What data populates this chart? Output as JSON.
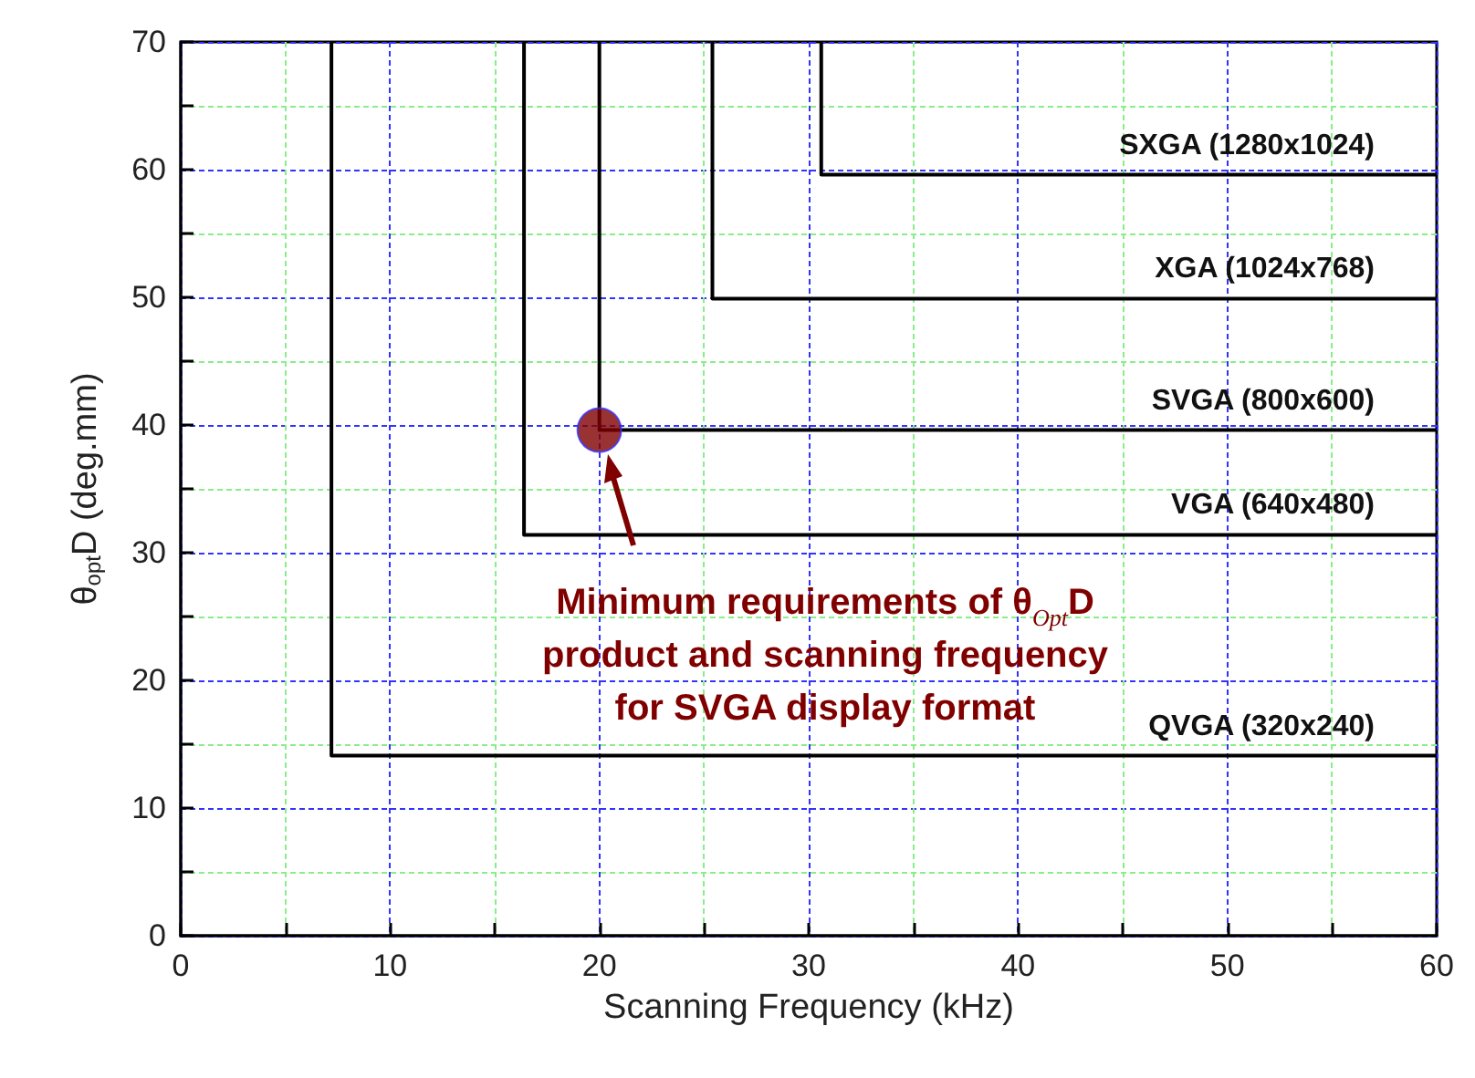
{
  "chart_data": {
    "type": "line",
    "xlabel": "Scanning Frequency (kHz)",
    "ylabel": "θ$_{opt}$D (deg.mm)",
    "xlim": [
      0,
      60
    ],
    "xticks": [
      0,
      {
        "value": 5,
        "label": null
      },
      10,
      {
        "value": 15,
        "label": null
      },
      20,
      {
        "value": 25,
        "label": null
      },
      30,
      {
        "value": 35,
        "label": null
      },
      40,
      {
        "value": 45,
        "label": null
      },
      50,
      {
        "value": 55,
        "label": null
      },
      60
    ],
    "ylim": [
      0,
      70
    ],
    "yticks": [
      0,
      {
        "value": 5,
        "label": null
      },
      10,
      {
        "value": 15,
        "label": null
      },
      20,
      {
        "value": 25,
        "label": null
      },
      30,
      {
        "value": 35,
        "label": null
      },
      40,
      {
        "value": 45,
        "label": null
      },
      50,
      {
        "value": 55,
        "label": null
      },
      60,
      {
        "value": 65,
        "label": null
      },
      70
    ],
    "grid": true,
    "marker": "none",
    "series": [
      {
        "name": "QVGA (320x240)",
        "color": "#000000",
        "x": [
          7.2,
          7.2,
          60
        ],
        "values": [
          70,
          14.1,
          14.1
        ]
      },
      {
        "name": "VGA (640x480)",
        "color": "#000000",
        "x": [
          16.4,
          16.4,
          60
        ],
        "values": [
          70,
          31.4,
          31.4
        ]
      },
      {
        "name": "SVGA (800x600)",
        "color": "#000000",
        "x": [
          20,
          20,
          60
        ],
        "values": [
          70,
          39.6,
          39.6
        ]
      },
      {
        "name": "XGA (1024x768)",
        "color": "#000000",
        "x": [
          25.4,
          25.4,
          60
        ],
        "values": [
          70,
          49.9,
          49.9
        ]
      },
      {
        "name": "SXGA (1280x1024)",
        "color": "#000000",
        "x": [
          30.6,
          30.6,
          60
        ],
        "values": [
          70,
          59.6,
          59.6
        ]
      },
      {
        "type": "scatter",
        "color": "#800000",
        "marker": "circle",
        "x": [
          20
        ],
        "values": [
          39.6
        ]
      }
    ],
    "annotations": [
      "Minimum requirements of θ$_{Opt}$D\nproduct and scanning frequency\nfor SVGA display format"
    ]
  }
}
